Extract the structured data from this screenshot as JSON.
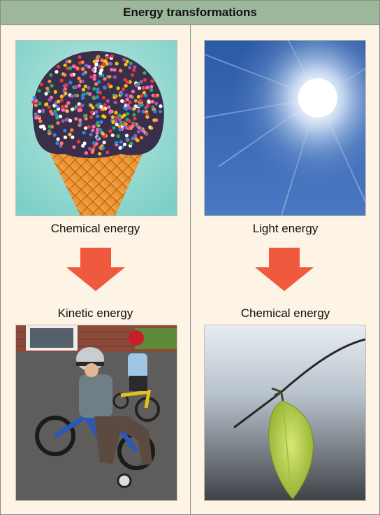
{
  "title": "Energy transformations",
  "left": {
    "top_label": "Chemical energy",
    "bottom_label": "Kinetic energy",
    "top_image": "ice-cream-cone-with-sprinkles",
    "bottom_image": "children-riding-bicycles"
  },
  "right": {
    "top_label": "Light energy",
    "bottom_label": "Chemical energy",
    "top_image": "sun-in-blue-sky",
    "bottom_image": "green-leaf-on-twig"
  },
  "colors": {
    "header": "#9db79a",
    "panel": "#fdf4e6",
    "arrow": "#ef5a3e"
  }
}
